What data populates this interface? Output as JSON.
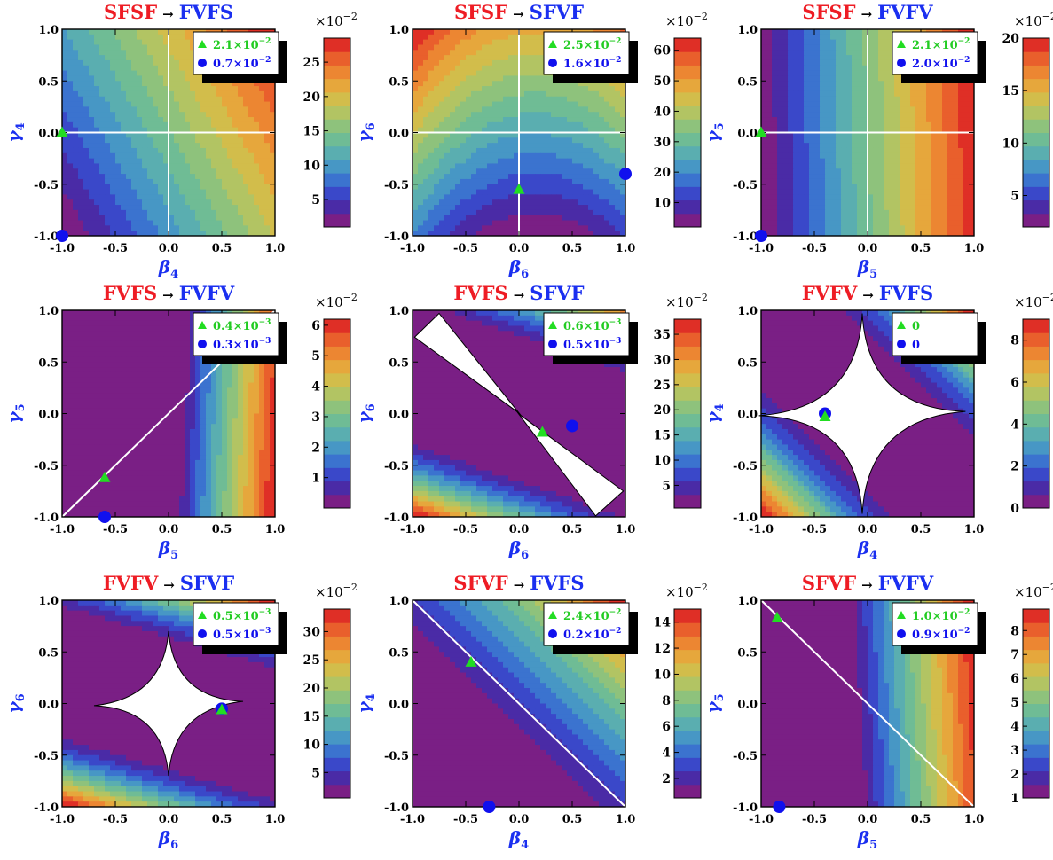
{
  "colors": {
    "title_from": "#ee1c24",
    "title_to": "#1a2ff0",
    "axis_label": "#1a2ff0",
    "triangle_marker": "#22dd22",
    "circle_marker": "#1010ee",
    "legend_triangle_text": "#22cc22",
    "legend_circle_text": "#1010ee",
    "gridline": "#ffffff",
    "cut_region": "#ffffff",
    "palette": [
      "#7a1f85",
      "#4a2ba6",
      "#3a48c9",
      "#3b73cf",
      "#4797c5",
      "#5aaeb0",
      "#6fbc95",
      "#8ec27c",
      "#b2c463",
      "#d2bd4b",
      "#e6a73c",
      "#ec8632",
      "#e95f2c",
      "#df2f26"
    ]
  },
  "arrow": "→",
  "colorbar_multiplier": "×10",
  "colorbar_exponent": "−2",
  "chart_data": [
    {
      "type": "heatmap",
      "title_from": "SFSF",
      "title_to": "FVFS",
      "xlabel": "β",
      "xlabel_sub": "4",
      "ylabel": "γ",
      "ylabel_sub": "4",
      "xlim": [
        -1,
        1
      ],
      "ylim": [
        -1,
        1
      ],
      "xticks": [
        "-1.0",
        "-0.5",
        "0.0",
        "0.5",
        "1.0"
      ],
      "yticks": [
        "-1.0",
        "-0.5",
        "0.0",
        "0.5",
        "1.0"
      ],
      "field": {
        "a": 1.0,
        "b": 0.55,
        "c": 0.0,
        "k": 0.02,
        "offset": 1.55
      },
      "colorbar": {
        "min": 1.0,
        "max": 28.5,
        "ticks": [
          "5",
          "10",
          "15",
          "20",
          "25"
        ],
        "tick_values": [
          5,
          10,
          15,
          20,
          25
        ]
      },
      "guides": [
        {
          "kind": "cross"
        }
      ],
      "cut": null,
      "triangle": {
        "x": -1.0,
        "y": 0.0
      },
      "circle": {
        "x": -1.0,
        "y": -1.0
      },
      "legend_triangle_base": "2.1",
      "legend_triangle_exp": "−2",
      "legend_circle_base": "0.7",
      "legend_circle_exp": "−2"
    },
    {
      "type": "heatmap",
      "title_from": "SFSF",
      "title_to": "SFVF",
      "xlabel": "β",
      "xlabel_sub": "6",
      "ylabel": "γ",
      "ylabel_sub": "6",
      "xlim": [
        -1,
        1
      ],
      "ylim": [
        -1,
        1
      ],
      "xticks": [
        "-1.0",
        "-0.5",
        "0.0",
        "0.5",
        "1.0"
      ],
      "yticks": [
        "-1.0",
        "-0.5",
        "0.0",
        "0.5",
        "1.0"
      ],
      "field": {
        "a": -0.18,
        "b": 1.0,
        "c": 0.0,
        "k": 0.6,
        "offset": 0.48
      },
      "colorbar": {
        "min": 2.0,
        "max": 64.0,
        "ticks": [
          "10",
          "20",
          "30",
          "40",
          "50",
          "60"
        ],
        "tick_values": [
          10,
          20,
          30,
          40,
          50,
          60
        ]
      },
      "guides": [
        {
          "kind": "cross"
        }
      ],
      "cut": null,
      "triangle": {
        "x": 0.0,
        "y": -0.55
      },
      "circle": {
        "x": 1.0,
        "y": -0.4
      },
      "legend_triangle_base": "2.5",
      "legend_triangle_exp": "−2",
      "legend_circle_base": "1.6",
      "legend_circle_exp": "−2"
    },
    {
      "type": "heatmap",
      "title_from": "SFSF",
      "title_to": "FVFV",
      "xlabel": "β",
      "xlabel_sub": "5",
      "ylabel": "γ",
      "ylabel_sub": "5",
      "xlim": [
        -1,
        1
      ],
      "ylim": [
        -1,
        1
      ],
      "xticks": [
        "-1.0",
        "-0.5",
        "0.0",
        "0.5",
        "1.0"
      ],
      "yticks": [
        "-1.0",
        "-0.5",
        "0.0",
        "0.5",
        "1.0"
      ],
      "field": {
        "a": 1.0,
        "b": 0.04,
        "c": 0.0,
        "k": 0.0,
        "offset": 1.05
      },
      "colorbar": {
        "min": 2.0,
        "max": 20.0,
        "ticks": [
          "5",
          "10",
          "15",
          "20"
        ],
        "tick_values": [
          5,
          10,
          15,
          20
        ]
      },
      "guides": [
        {
          "kind": "cross"
        }
      ],
      "cut": null,
      "triangle": {
        "x": -1.0,
        "y": 0.0
      },
      "circle": {
        "x": -1.0,
        "y": -1.0
      },
      "legend_triangle_base": "2.1",
      "legend_triangle_exp": "−2",
      "legend_circle_base": "2.0",
      "legend_circle_exp": "−2"
    },
    {
      "type": "heatmap",
      "title_from": "FVFS",
      "title_to": "FVFV",
      "xlabel": "β",
      "xlabel_sub": "5",
      "ylabel": "γ",
      "ylabel_sub": "5",
      "xlim": [
        -1,
        1
      ],
      "ylim": [
        -1,
        1
      ],
      "xticks": [
        "-1.0",
        "-0.5",
        "0.0",
        "0.5",
        "1.0"
      ],
      "yticks": [
        "-1.0",
        "-0.5",
        "0.0",
        "0.5",
        "1.0"
      ],
      "field": {
        "a": 1.0,
        "b": -0.05,
        "c": 0.0,
        "k": 0.0,
        "offset": 0.15,
        "floor": 0.25,
        "power": 1.0
      },
      "colorbar": {
        "min": 0.0,
        "max": 6.2,
        "ticks": [
          "1",
          "2",
          "3",
          "4",
          "5",
          "6"
        ],
        "tick_values": [
          1,
          2,
          3,
          4,
          5,
          6
        ]
      },
      "guides": [
        {
          "kind": "diag_up"
        }
      ],
      "cut": null,
      "triangle": {
        "x": -0.6,
        "y": -0.62
      },
      "circle": {
        "x": -0.6,
        "y": -1.0
      },
      "legend_triangle_base": "0.4",
      "legend_triangle_exp": "−3",
      "legend_circle_base": "0.3",
      "legend_circle_exp": "−3"
    },
    {
      "type": "heatmap",
      "title_from": "FVFS",
      "title_to": "SFVF",
      "xlabel": "β",
      "xlabel_sub": "6",
      "ylabel": "γ",
      "ylabel_sub": "6",
      "xlim": [
        -1,
        1
      ],
      "ylim": [
        -1,
        1
      ],
      "xticks": [
        "-1.0",
        "-0.5",
        "0.0",
        "0.5",
        "1.0"
      ],
      "yticks": [
        "-1.0",
        "-0.5",
        "0.0",
        "0.5",
        "1.0"
      ],
      "field": {
        "a": 0.35,
        "b": 1.0,
        "c": 0.0,
        "k": 0.0,
        "offset": -0.05,
        "abs": true,
        "floor": 0.55,
        "power": 1.6
      },
      "colorbar": {
        "min": 0.5,
        "max": 38.0,
        "ticks": [
          "5",
          "10",
          "15",
          "20",
          "25",
          "30",
          "35"
        ],
        "tick_values": [
          5,
          10,
          15,
          20,
          25,
          30,
          35
        ]
      },
      "guides": [],
      "cut": {
        "kind": "bowtie"
      },
      "triangle": {
        "x": 0.22,
        "y": -0.18
      },
      "circle": {
        "x": 0.5,
        "y": -0.12
      },
      "legend_triangle_base": "0.6",
      "legend_triangle_exp": "−3",
      "legend_circle_base": "0.5",
      "legend_circle_exp": "−3"
    },
    {
      "type": "heatmap",
      "title_from": "FVFV",
      "title_to": "FVFS",
      "xlabel": "β",
      "xlabel_sub": "4",
      "ylabel": "γ",
      "ylabel_sub": "4",
      "xlim": [
        -1,
        1
      ],
      "ylim": [
        -1,
        1
      ],
      "xticks": [
        "-1.0",
        "-0.5",
        "0.0",
        "0.5",
        "1.0"
      ],
      "yticks": [
        "-1.0",
        "-0.5",
        "0.0",
        "0.5",
        "1.0"
      ],
      "field": {
        "a": 1.0,
        "b": 1.0,
        "c": 0.0,
        "k": 0.0,
        "offset": 0.0,
        "abs": true,
        "floor": 0.55,
        "power": 1.5
      },
      "colorbar": {
        "min": 0.0,
        "max": 9.0,
        "ticks": [
          "0",
          "2",
          "4",
          "6",
          "8"
        ],
        "tick_values": [
          0,
          2,
          4,
          6,
          8
        ]
      },
      "guides": [],
      "cut": {
        "kind": "star"
      },
      "triangle": {
        "x": -0.4,
        "y": -0.03
      },
      "circle": {
        "x": -0.4,
        "y": 0.0
      },
      "legend_triangle_base": "0",
      "legend_triangle_exp": "",
      "legend_circle_base": "0",
      "legend_circle_exp": ""
    },
    {
      "type": "heatmap",
      "title_from": "FVFV",
      "title_to": "SFVF",
      "xlabel": "β",
      "xlabel_sub": "6",
      "ylabel": "γ",
      "ylabel_sub": "6",
      "xlim": [
        -1,
        1
      ],
      "ylim": [
        -1,
        1
      ],
      "xticks": [
        "-1.0",
        "-0.5",
        "0.0",
        "0.5",
        "1.0"
      ],
      "yticks": [
        "-1.0",
        "-0.5",
        "0.0",
        "0.5",
        "1.0"
      ],
      "field": {
        "a": 0.3,
        "b": 1.0,
        "c": 0.0,
        "k": 0.0,
        "offset": 0.0,
        "abs": true,
        "floor": 0.5,
        "power": 1.6
      },
      "colorbar": {
        "min": 0.5,
        "max": 34.0,
        "ticks": [
          "5",
          "10",
          "15",
          "20",
          "25",
          "30"
        ],
        "tick_values": [
          5,
          10,
          15,
          20,
          25,
          30
        ]
      },
      "guides": [],
      "cut": {
        "kind": "star_small"
      },
      "triangle": {
        "x": 0.5,
        "y": -0.06
      },
      "circle": {
        "x": 0.5,
        "y": -0.05
      },
      "legend_triangle_base": "0.5",
      "legend_triangle_exp": "−3",
      "legend_circle_base": "0.5",
      "legend_circle_exp": "−3"
    },
    {
      "type": "heatmap",
      "title_from": "SFVF",
      "title_to": "FVFS",
      "xlabel": "β",
      "xlabel_sub": "4",
      "ylabel": "γ",
      "ylabel_sub": "4",
      "xlim": [
        -1,
        1
      ],
      "ylim": [
        -1,
        1
      ],
      "xticks": [
        "-1.0",
        "-0.5",
        "0.0",
        "0.5",
        "1.0"
      ],
      "yticks": [
        "-1.0",
        "-0.5",
        "0.0",
        "0.5",
        "1.0"
      ],
      "field": {
        "a": 1.0,
        "b": 1.0,
        "c": 0.0,
        "k": 0.0,
        "offset": 1.4,
        "floor": 0.7,
        "power": 1.5
      },
      "colorbar": {
        "min": 0.5,
        "max": 15.0,
        "ticks": [
          "2",
          "4",
          "6",
          "8",
          "10",
          "12",
          "14"
        ],
        "tick_values": [
          2,
          4,
          6,
          8,
          10,
          12,
          14
        ]
      },
      "guides": [
        {
          "kind": "diag_down"
        }
      ],
      "cut": null,
      "triangle": {
        "x": -0.45,
        "y": 0.4
      },
      "circle": {
        "x": -0.28,
        "y": -1.0
      },
      "legend_triangle_base": "2.4",
      "legend_triangle_exp": "−2",
      "legend_circle_base": "0.2",
      "legend_circle_exp": "−2"
    },
    {
      "type": "heatmap",
      "title_from": "SFVF",
      "title_to": "FVFV",
      "xlabel": "β",
      "xlabel_sub": "5",
      "ylabel": "γ",
      "ylabel_sub": "5",
      "xlim": [
        -1,
        1
      ],
      "ylim": [
        -1,
        1
      ],
      "xticks": [
        "-1.0",
        "-0.5",
        "0.0",
        "0.5",
        "1.0"
      ],
      "yticks": [
        "-1.0",
        "-0.5",
        "0.0",
        "0.5",
        "1.0"
      ],
      "field": {
        "a": 1.0,
        "b": 0.06,
        "c": 0.0,
        "k": 0.0,
        "offset": 0.55,
        "floor": 0.4,
        "power": 1.0
      },
      "colorbar": {
        "min": 1.0,
        "max": 8.9,
        "ticks": [
          "1",
          "2",
          "3",
          "4",
          "5",
          "6",
          "7",
          "8"
        ],
        "tick_values": [
          1,
          2,
          3,
          4,
          5,
          6,
          7,
          8
        ]
      },
      "guides": [
        {
          "kind": "diag_down"
        }
      ],
      "cut": null,
      "triangle": {
        "x": -0.85,
        "y": 0.83
      },
      "circle": {
        "x": -0.83,
        "y": -1.0
      },
      "legend_triangle_base": "1.0",
      "legend_triangle_exp": "−2",
      "legend_circle_base": "0.9",
      "legend_circle_exp": "−2"
    }
  ]
}
